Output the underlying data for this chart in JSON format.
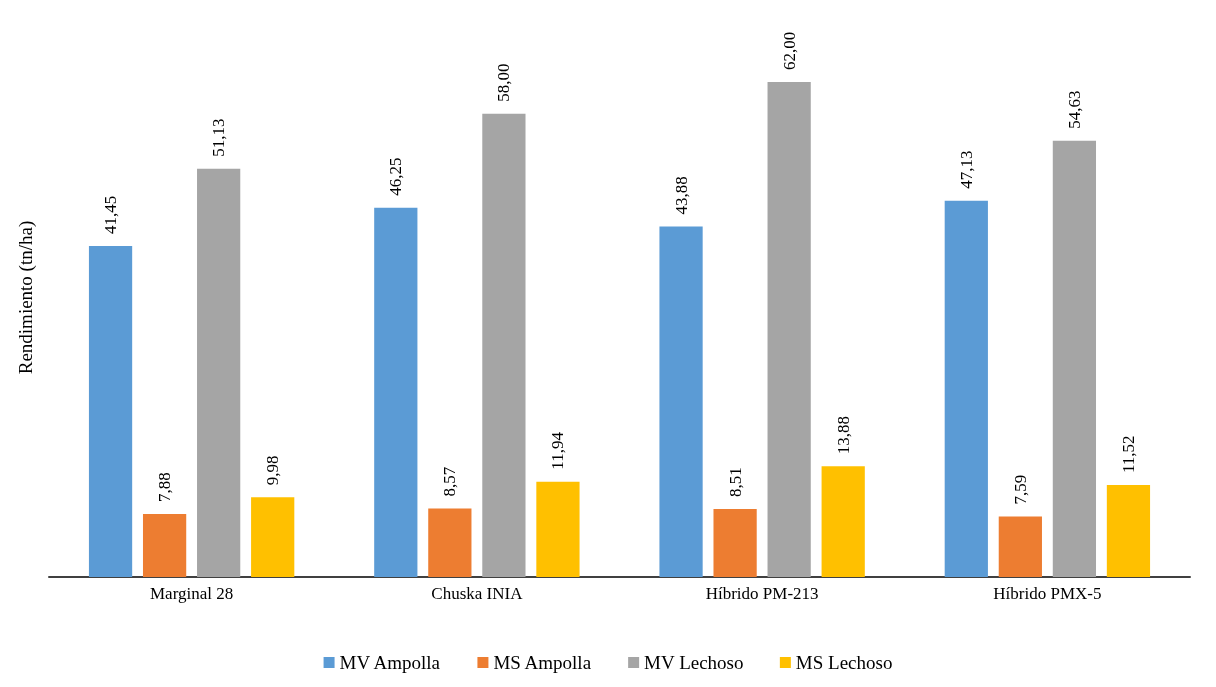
{
  "chart_data": {
    "type": "bar",
    "ylabel": "Rendimiento (tn/ha)",
    "categories": [
      "Marginal 28",
      "Chuska INIA",
      "Híbrido PM-213",
      "Híbrido PMX-5"
    ],
    "series": [
      {
        "name": "MV Ampolla",
        "color": "#5b9bd5",
        "values": [
          41.45,
          46.25,
          43.88,
          47.13
        ],
        "value_labels": [
          "41,45",
          "46,25",
          "43,88",
          "47,13"
        ]
      },
      {
        "name": "MS Ampolla",
        "color": "#ed7d31",
        "values": [
          7.88,
          8.57,
          8.51,
          7.59
        ],
        "value_labels": [
          "7,88",
          "8,57",
          "8,51",
          "7,59"
        ]
      },
      {
        "name": "MV Lechoso",
        "color": "#a5a5a5",
        "values": [
          51.13,
          58.0,
          62.0,
          54.63
        ],
        "value_labels": [
          "51,13",
          "58,00",
          "62,00",
          "54,63"
        ]
      },
      {
        "name": "MS Lechoso",
        "color": "#ffc000",
        "values": [
          9.98,
          11.94,
          13.88,
          11.52
        ],
        "value_labels": [
          "9,98",
          "11,94",
          "13,88",
          "11,52"
        ]
      }
    ],
    "grid": false,
    "legend": "bottom"
  }
}
